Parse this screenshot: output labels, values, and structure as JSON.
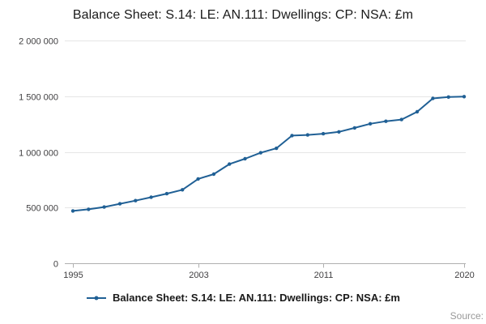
{
  "page": {
    "title": "Balance Sheet: S.14: LE: AN.111: Dwellings: CP: NSA: £m",
    "source_label": "Source:"
  },
  "legend": {
    "label": "Balance Sheet: S.14: LE: AN.111: Dwellings: CP: NSA: £m"
  },
  "chart_data": {
    "type": "line",
    "title": "Balance Sheet: S.14: LE: AN.111: Dwellings: CP: NSA: £m",
    "xlabel": "",
    "ylabel": "",
    "xlim": [
      1995,
      2020
    ],
    "ylim": [
      0,
      2000000
    ],
    "grid": true,
    "legend_position": "bottom",
    "line_color": "#206095",
    "colors": {
      "grid": "#e6e6e6",
      "axis": "#b0b0b0",
      "tick_label": "#414042"
    },
    "x": [
      1995,
      1996,
      1997,
      1998,
      1999,
      2000,
      2001,
      2002,
      2003,
      2004,
      2005,
      2006,
      2007,
      2008,
      2009,
      2010,
      2011,
      2012,
      2013,
      2014,
      2015,
      2016,
      2017,
      2018,
      2019,
      2020
    ],
    "series": [
      {
        "name": "Balance Sheet: S.14: LE: AN.111: Dwellings: CP: NSA: £m",
        "values": [
          470000,
          484000,
          505000,
          534000,
          562000,
          593000,
          625000,
          660000,
          757000,
          800000,
          890000,
          938000,
          992000,
          1032000,
          1146000,
          1152000,
          1163000,
          1180000,
          1215000,
          1252000,
          1275000,
          1290000,
          1360000,
          1480000,
          1492000,
          1496000
        ]
      }
    ],
    "yticks": {
      "values": [
        0,
        500000,
        1000000,
        1500000,
        2000000
      ],
      "labels": [
        "0",
        "500 000",
        "1 000 000",
        "1 500 000",
        "2 000 000"
      ]
    },
    "xticks": {
      "values": [
        1995,
        2003,
        2011,
        2020
      ],
      "labels": [
        "1995",
        "2003",
        "2011",
        "2020"
      ]
    }
  }
}
